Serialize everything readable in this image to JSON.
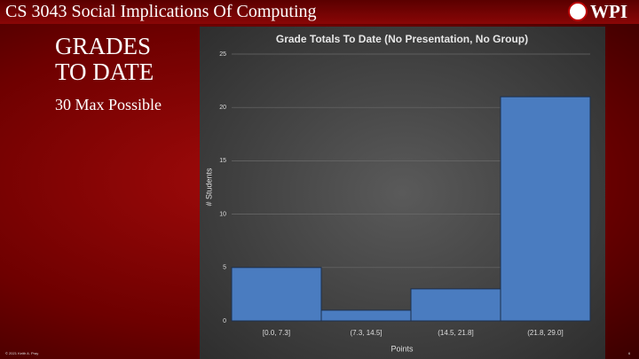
{
  "header": {
    "title": "CS 3043 Social Implications Of Computing",
    "logo": "WPI"
  },
  "slide": {
    "title_lines": [
      "GRADES",
      "TO DATE"
    ],
    "subtitle": "30 Max Possible",
    "footer": "© 2021 Keith A. Pray",
    "page_number": "6"
  },
  "chart_data": {
    "type": "bar",
    "title": "Grade Totals To Date (No Presentation, No Group)",
    "categories": [
      "[0.0, 7.3]",
      "(7.3, 14.5]",
      "(14.5, 21.8]",
      "(21.8, 29.0]"
    ],
    "values": [
      5,
      1,
      3,
      21
    ],
    "color": "#4a7cc0",
    "x_label": "Points",
    "y_label": "# Students",
    "ylim": [
      0,
      25
    ],
    "yticks": [
      0,
      5,
      10,
      15,
      20,
      25
    ],
    "grid": true
  }
}
